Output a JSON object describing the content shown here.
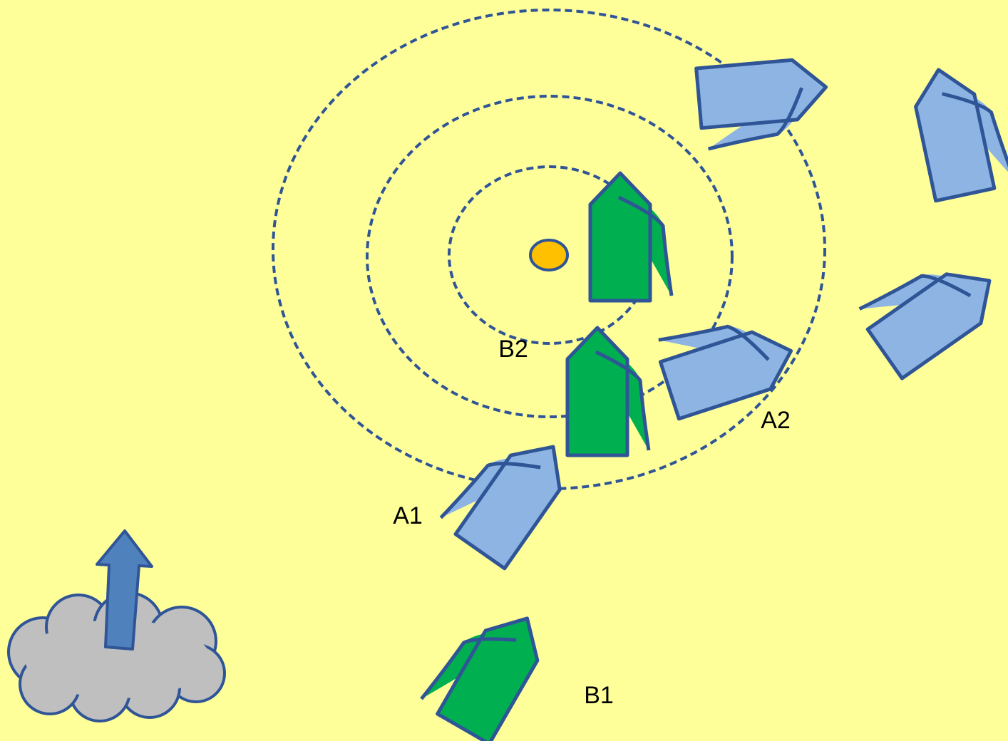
{
  "labels": [
    "B2",
    "A2",
    "A1",
    "B1"
  ]
}
